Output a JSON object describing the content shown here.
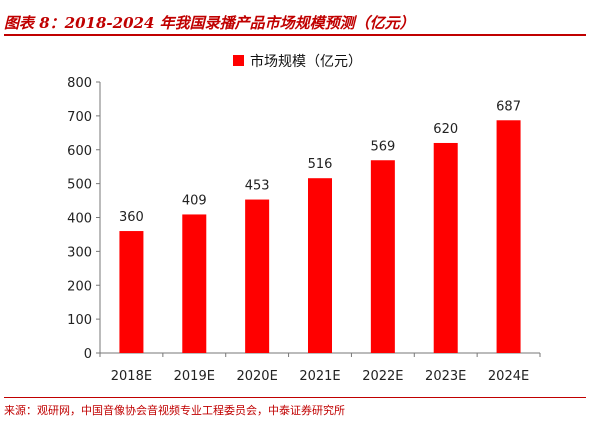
{
  "figure": {
    "title": "图表 8：2018-2024 年我国录播产品市场规模预测（亿元）",
    "source": "来源：观研网，中国音像协会音视频专业工程委员会，中泰证券研究所"
  },
  "colors": {
    "bar": "#FF0000",
    "accent": "#C00000"
  },
  "chart_data": {
    "type": "bar",
    "title": "",
    "xlabel": "",
    "ylabel": "",
    "categories": [
      "2018E",
      "2019E",
      "2020E",
      "2021E",
      "2022E",
      "2023E",
      "2024E"
    ],
    "series": [
      {
        "name": "市场规模（亿元）",
        "values": [
          360,
          409,
          453,
          516,
          569,
          620,
          687
        ]
      }
    ],
    "ylim": [
      0,
      800
    ],
    "yticks": [
      0,
      100,
      200,
      300,
      400,
      500,
      600,
      700,
      800
    ],
    "grid": false,
    "legend": "top-center",
    "data_labels": true
  }
}
